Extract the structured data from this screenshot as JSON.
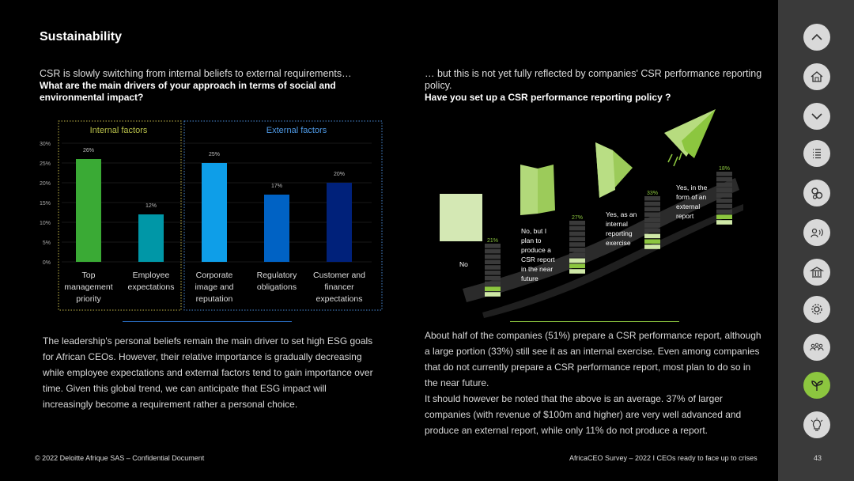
{
  "page_title": "Sustainability",
  "left": {
    "lead": "CSR is slowly switching from internal beliefs to external requirements…",
    "question": "What are the main drivers of your approach in terms of social and environmental impact?",
    "body": "The leadership's personal beliefs remain the main driver to set high ESG goals for African CEOs. However, their relative importance is gradually decreasing  while employee expectations and external factors tend to gain importance over time. Given this global trend, we can anticipate that ESG impact will increasingly become a requirement rather a personal choice."
  },
  "right": {
    "lead": "… but this is not yet fully reflected by companies' CSR performance reporting policy.",
    "question": "Have you set up a CSR performance reporting policy ?",
    "body_1": "About half of the companies (51%) prepare a CSR performance report, although a large portion (33%) still see it as an internal exercise. Even among companies that do not currently prepare a CSR performance report, most plan to do so in the near future.",
    "body_2": "It should however be noted that the above is an average. 37% of larger companies (with revenue of $100m and higher) are very well advanced and produce an external report, while only 11% do not produce a report."
  },
  "footer": {
    "copyright": "© 2022 Deloitte Afrique SAS – Confidential Document",
    "survey": "AfricaCEO Survey – 2022 I CEOs ready to face up to crises",
    "page_number": "43"
  },
  "chart_data": [
    {
      "type": "bar",
      "groups": [
        "Internal factors",
        "External factors"
      ],
      "categories": [
        "Top management priority",
        "Employee expectations",
        "Corporate image and reputation",
        "Regulatory obligations",
        "Customer and financer expectations"
      ],
      "category_lines": [
        [
          "Top",
          "management",
          "priority"
        ],
        [
          "Employee",
          "expectations"
        ],
        [
          "Corporate",
          "image and",
          "reputation"
        ],
        [
          "Regulatory",
          "obligations"
        ],
        [
          "Customer and",
          "financer",
          "expectations"
        ]
      ],
      "values": [
        26,
        12,
        25,
        17,
        20
      ],
      "value_labels": [
        "26%",
        "12%",
        "25%",
        "17%",
        "20%"
      ],
      "colors": [
        "#3aaa35",
        "#0097a7",
        "#0e9ee8",
        "#0062c4",
        "#00217a"
      ],
      "yticks": [
        "0%",
        "5%",
        "10%",
        "15%",
        "20%",
        "25%",
        "30%"
      ],
      "ylim": [
        0,
        30
      ],
      "grid": true
    },
    {
      "type": "bar",
      "categories": [
        "No",
        "No, but I plan to produce a CSR report in the near future",
        "Yes, as an internal reporting exercise",
        "Yes, in the form of an external report"
      ],
      "category_lines": [
        [
          "No"
        ],
        [
          "No, but I",
          "plan to",
          "produce a",
          "CSR report",
          "in the near",
          "future"
        ],
        [
          "Yes, as an",
          "internal",
          "reporting",
          "exercise"
        ],
        [
          "Yes, in the",
          "form of an",
          "external",
          "report"
        ]
      ],
      "values": [
        21,
        27,
        33,
        18
      ],
      "value_labels": [
        "21%",
        "27%",
        "33%",
        "18%"
      ],
      "accent": "#8cc63f"
    }
  ],
  "nav_icons": [
    "chevron-up-icon",
    "home-icon",
    "chevron-down-icon",
    "list-icon",
    "gears-icon",
    "person-speaking-icon",
    "bank-icon",
    "gear-icon",
    "people-icon",
    "plant-icon",
    "lightbulb-icon"
  ],
  "colors": {
    "background": "#000000",
    "sidebar": "#3a3a3a",
    "accent_green": "#8cc63f",
    "nav_button": "#d9d9d9"
  }
}
